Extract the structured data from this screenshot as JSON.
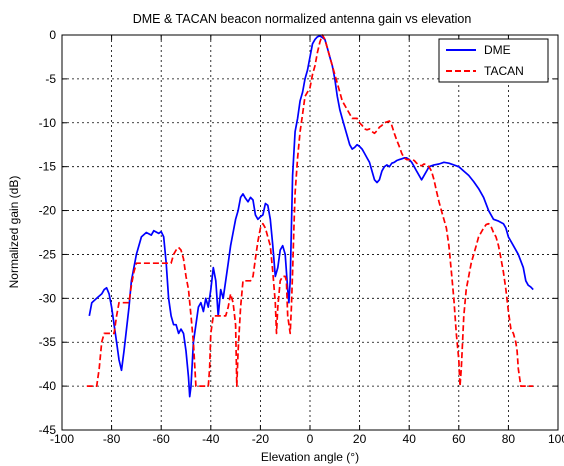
{
  "chart_data": {
    "type": "line",
    "title": "DME & TACAN beacon normalized antenna gain vs elevation",
    "xlabel": "Elevation angle (°)",
    "ylabel": "Normalized gain (dB)",
    "xlim": [
      -100,
      100
    ],
    "ylim": [
      -45,
      0
    ],
    "xticks": [
      -100,
      -80,
      -60,
      -40,
      -20,
      0,
      20,
      40,
      60,
      80,
      100
    ],
    "yticks": [
      0,
      -5,
      -10,
      -15,
      -20,
      -25,
      -30,
      -35,
      -40,
      -45
    ],
    "grid": true,
    "legend_position": "top-right",
    "series": [
      {
        "name": "DME",
        "color": "#0000ff",
        "style": "solid",
        "points": [
          [
            -89,
            -32
          ],
          [
            -88,
            -30.5
          ],
          [
            -86,
            -30
          ],
          [
            -84,
            -29.5
          ],
          [
            -83,
            -29
          ],
          [
            -82,
            -28.8
          ],
          [
            -81,
            -29.5
          ],
          [
            -80,
            -31
          ],
          [
            -79,
            -33
          ],
          [
            -78,
            -35
          ],
          [
            -77,
            -37
          ],
          [
            -76,
            -38.2
          ],
          [
            -75,
            -36
          ],
          [
            -73,
            -31
          ],
          [
            -72,
            -28
          ],
          [
            -70,
            -25
          ],
          [
            -68,
            -23
          ],
          [
            -66,
            -22.5
          ],
          [
            -64,
            -22.8
          ],
          [
            -63,
            -22.3
          ],
          [
            -61,
            -22.6
          ],
          [
            -60,
            -22.4
          ],
          [
            -59,
            -23
          ],
          [
            -58,
            -26
          ],
          [
            -57,
            -30
          ],
          [
            -56,
            -32
          ],
          [
            -55,
            -33
          ],
          [
            -54,
            -33
          ],
          [
            -53,
            -34
          ],
          [
            -52,
            -33.5
          ],
          [
            -51,
            -34
          ],
          [
            -50,
            -36
          ],
          [
            -49,
            -39
          ],
          [
            -48.5,
            -41.2
          ],
          [
            -48,
            -40
          ],
          [
            -47,
            -35
          ],
          [
            -46,
            -33
          ],
          [
            -45,
            -31
          ],
          [
            -44,
            -30.5
          ],
          [
            -43,
            -31.5
          ],
          [
            -42,
            -30
          ],
          [
            -41,
            -31
          ],
          [
            -40,
            -29
          ],
          [
            -39,
            -26.5
          ],
          [
            -38,
            -28
          ],
          [
            -37,
            -32
          ],
          [
            -36,
            -29
          ],
          [
            -35,
            -30
          ],
          [
            -34,
            -28
          ],
          [
            -33,
            -26
          ],
          [
            -32,
            -24
          ],
          [
            -31,
            -22.5
          ],
          [
            -30,
            -21
          ],
          [
            -29,
            -20
          ],
          [
            -28,
            -18.5
          ],
          [
            -27,
            -18.1
          ],
          [
            -26,
            -18.6
          ],
          [
            -25,
            -19
          ],
          [
            -24,
            -18.5
          ],
          [
            -23,
            -18.8
          ],
          [
            -22,
            -20.5
          ],
          [
            -21,
            -21
          ],
          [
            -20,
            -20.7
          ],
          [
            -19,
            -20.5
          ],
          [
            -18,
            -19.2
          ],
          [
            -17,
            -19.4
          ],
          [
            -16,
            -21
          ],
          [
            -15,
            -24
          ],
          [
            -14,
            -27.5
          ],
          [
            -13,
            -26.5
          ],
          [
            -12,
            -24.5
          ],
          [
            -11,
            -24
          ],
          [
            -10,
            -25
          ],
          [
            -9,
            -29
          ],
          [
            -8.5,
            -30.5
          ],
          [
            -8,
            -28
          ],
          [
            -7.5,
            -22
          ],
          [
            -7,
            -16
          ],
          [
            -6,
            -11
          ],
          [
            -5,
            -9.5
          ],
          [
            -4,
            -7.5
          ],
          [
            -3,
            -6.5
          ],
          [
            -2,
            -5
          ],
          [
            -1,
            -4
          ],
          [
            0,
            -2.5
          ],
          [
            1,
            -1
          ],
          [
            2,
            -0.5
          ],
          [
            3,
            -0.2
          ],
          [
            4,
            -0.1
          ],
          [
            5,
            -0.3
          ],
          [
            6,
            -0.5
          ],
          [
            7,
            -1.5
          ],
          [
            8,
            -2.5
          ],
          [
            9,
            -3.5
          ],
          [
            10,
            -5
          ],
          [
            11,
            -7
          ],
          [
            12,
            -8.5
          ],
          [
            13,
            -9.5
          ],
          [
            14,
            -10.5
          ],
          [
            15,
            -11.5
          ],
          [
            16,
            -12.5
          ],
          [
            17,
            -13
          ],
          [
            18,
            -12.8
          ],
          [
            19,
            -12.5
          ],
          [
            20,
            -12.7
          ],
          [
            21,
            -13
          ],
          [
            22,
            -13.5
          ],
          [
            23,
            -14
          ],
          [
            24,
            -14.5
          ],
          [
            25,
            -15.5
          ],
          [
            26,
            -16.5
          ],
          [
            27,
            -16.8
          ],
          [
            28,
            -16.5
          ],
          [
            29,
            -15.5
          ],
          [
            30,
            -15
          ],
          [
            31,
            -14.8
          ],
          [
            32,
            -15
          ],
          [
            33,
            -14.6
          ],
          [
            34,
            -14.5
          ],
          [
            35,
            -14.3
          ],
          [
            36,
            -14.2
          ],
          [
            37,
            -14.1
          ],
          [
            38,
            -14
          ],
          [
            39,
            -14
          ],
          [
            40,
            -14.2
          ],
          [
            41,
            -14.5
          ],
          [
            42,
            -15
          ],
          [
            43,
            -15.5
          ],
          [
            44,
            -16
          ],
          [
            45,
            -16.5
          ],
          [
            46,
            -16
          ],
          [
            47,
            -15.5
          ],
          [
            48,
            -15
          ],
          [
            50,
            -14.8
          ],
          [
            52,
            -14.7
          ],
          [
            54,
            -14.5
          ],
          [
            56,
            -14.6
          ],
          [
            58,
            -14.8
          ],
          [
            60,
            -15
          ],
          [
            62,
            -15.5
          ],
          [
            64,
            -16
          ],
          [
            66,
            -16.7
          ],
          [
            68,
            -17.5
          ],
          [
            70,
            -18.5
          ],
          [
            72,
            -20
          ],
          [
            74,
            -21
          ],
          [
            76,
            -21.2
          ],
          [
            78,
            -21.5
          ],
          [
            79,
            -22
          ],
          [
            80,
            -23
          ],
          [
            82,
            -24
          ],
          [
            84,
            -25
          ],
          [
            86,
            -26.5
          ],
          [
            87,
            -28
          ],
          [
            88,
            -28.5
          ],
          [
            89,
            -28.7
          ],
          [
            90,
            -29
          ]
        ]
      },
      {
        "name": "TACAN",
        "color": "#ff0000",
        "style": "dashed",
        "points": [
          [
            -90,
            -40
          ],
          [
            -86,
            -40
          ],
          [
            -85,
            -38
          ],
          [
            -84,
            -35
          ],
          [
            -83,
            -34
          ],
          [
            -81,
            -34
          ],
          [
            -79,
            -34
          ],
          [
            -78,
            -32
          ],
          [
            -77,
            -30.5
          ],
          [
            -75,
            -30.5
          ],
          [
            -73,
            -30.5
          ],
          [
            -72,
            -28.5
          ],
          [
            -71,
            -27
          ],
          [
            -70,
            -26
          ],
          [
            -66,
            -26
          ],
          [
            -62,
            -26
          ],
          [
            -58,
            -26
          ],
          [
            -56,
            -26
          ],
          [
            -55,
            -25
          ],
          [
            -54,
            -24.5
          ],
          [
            -53,
            -24.2
          ],
          [
            -52,
            -24.5
          ],
          [
            -51,
            -25.5
          ],
          [
            -50,
            -27.5
          ],
          [
            -49,
            -29
          ],
          [
            -48,
            -32
          ],
          [
            -47,
            -35
          ],
          [
            -46,
            -40
          ],
          [
            -44,
            -40
          ],
          [
            -42,
            -40
          ],
          [
            -41,
            -40
          ],
          [
            -40.5,
            -38
          ],
          [
            -40,
            -34
          ],
          [
            -39,
            -32
          ],
          [
            -37,
            -32
          ],
          [
            -35,
            -32
          ],
          [
            -34,
            -32
          ],
          [
            -33,
            -31
          ],
          [
            -32,
            -29.5
          ],
          [
            -31,
            -30.5
          ],
          [
            -30,
            -33
          ],
          [
            -29.5,
            -40
          ],
          [
            -29,
            -36
          ],
          [
            -28,
            -31
          ],
          [
            -27,
            -28
          ],
          [
            -26,
            -28
          ],
          [
            -24,
            -28
          ],
          [
            -23,
            -27.5
          ],
          [
            -22,
            -25.5
          ],
          [
            -21,
            -23.5
          ],
          [
            -20,
            -22
          ],
          [
            -19,
            -21.5
          ],
          [
            -18,
            -22
          ],
          [
            -17,
            -23
          ],
          [
            -16,
            -24
          ],
          [
            -15,
            -27
          ],
          [
            -14,
            -30.5
          ],
          [
            -13.5,
            -34
          ],
          [
            -13,
            -31
          ],
          [
            -12,
            -28
          ],
          [
            -11,
            -27.5
          ],
          [
            -10,
            -27.5
          ],
          [
            -9.5,
            -28
          ],
          [
            -9,
            -32
          ],
          [
            -8,
            -34
          ],
          [
            -7.5,
            -31
          ],
          [
            -7,
            -27
          ],
          [
            -6.5,
            -22
          ],
          [
            -6,
            -18
          ],
          [
            -5,
            -14
          ],
          [
            -4,
            -11
          ],
          [
            -3,
            -9
          ],
          [
            -2,
            -7
          ],
          [
            -1,
            -6.5
          ],
          [
            0,
            -6
          ],
          [
            1,
            -4.5
          ],
          [
            2,
            -3.5
          ],
          [
            3,
            -2
          ],
          [
            4,
            -0.8
          ],
          [
            5,
            0
          ],
          [
            6,
            -0.5
          ],
          [
            7,
            -1.5
          ],
          [
            8,
            -2.5
          ],
          [
            9,
            -3.5
          ],
          [
            10,
            -4.5
          ],
          [
            11,
            -5.5
          ],
          [
            12,
            -6.5
          ],
          [
            13,
            -7.5
          ],
          [
            14,
            -8
          ],
          [
            15,
            -8.5
          ],
          [
            16,
            -9
          ],
          [
            17,
            -9.5
          ],
          [
            18,
            -9.5
          ],
          [
            19,
            -9.5
          ],
          [
            20,
            -10
          ],
          [
            21,
            -10.3
          ],
          [
            22,
            -10.7
          ],
          [
            23,
            -10.8
          ],
          [
            24,
            -10.7
          ],
          [
            25,
            -11
          ],
          [
            26,
            -11.2
          ],
          [
            27,
            -10.9
          ],
          [
            28,
            -10.5
          ],
          [
            29,
            -10.3
          ],
          [
            30,
            -10
          ],
          [
            31,
            -9.9
          ],
          [
            32,
            -9.8
          ],
          [
            33,
            -10.3
          ],
          [
            34,
            -11.2
          ],
          [
            35,
            -12
          ],
          [
            36,
            -12.7
          ],
          [
            37,
            -13.5
          ],
          [
            38,
            -14
          ],
          [
            39,
            -14.2
          ],
          [
            40,
            -14.2
          ],
          [
            41,
            -14.2
          ],
          [
            42,
            -14.3
          ],
          [
            43,
            -14.6
          ],
          [
            44,
            -14.8
          ],
          [
            45,
            -14.9
          ],
          [
            46,
            -14.7
          ],
          [
            47,
            -14.8
          ],
          [
            48,
            -15
          ],
          [
            49,
            -15.5
          ],
          [
            50,
            -16.5
          ],
          [
            51,
            -17.8
          ],
          [
            52,
            -19
          ],
          [
            53,
            -20
          ],
          [
            54,
            -21
          ],
          [
            55,
            -22
          ],
          [
            56,
            -24
          ],
          [
            57,
            -27
          ],
          [
            58,
            -30
          ],
          [
            59,
            -34
          ],
          [
            60,
            -37
          ],
          [
            60.5,
            -40
          ],
          [
            61,
            -38
          ],
          [
            62,
            -32
          ],
          [
            63,
            -29
          ],
          [
            64,
            -27.5
          ],
          [
            65,
            -26
          ],
          [
            66,
            -25
          ],
          [
            67,
            -24
          ],
          [
            68,
            -23
          ],
          [
            69,
            -22.5
          ],
          [
            70,
            -22
          ],
          [
            71,
            -21.6
          ],
          [
            72,
            -21.5
          ],
          [
            73,
            -21.8
          ],
          [
            74,
            -22.5
          ],
          [
            75,
            -23
          ],
          [
            76,
            -24
          ],
          [
            77,
            -25.5
          ],
          [
            78,
            -27
          ],
          [
            79,
            -29
          ],
          [
            80,
            -31.5
          ],
          [
            81,
            -33.5
          ],
          [
            82,
            -34
          ],
          [
            83,
            -35
          ],
          [
            83.5,
            -36
          ],
          [
            84,
            -38
          ],
          [
            85,
            -40
          ],
          [
            88,
            -40
          ],
          [
            90,
            -40
          ]
        ]
      }
    ]
  }
}
